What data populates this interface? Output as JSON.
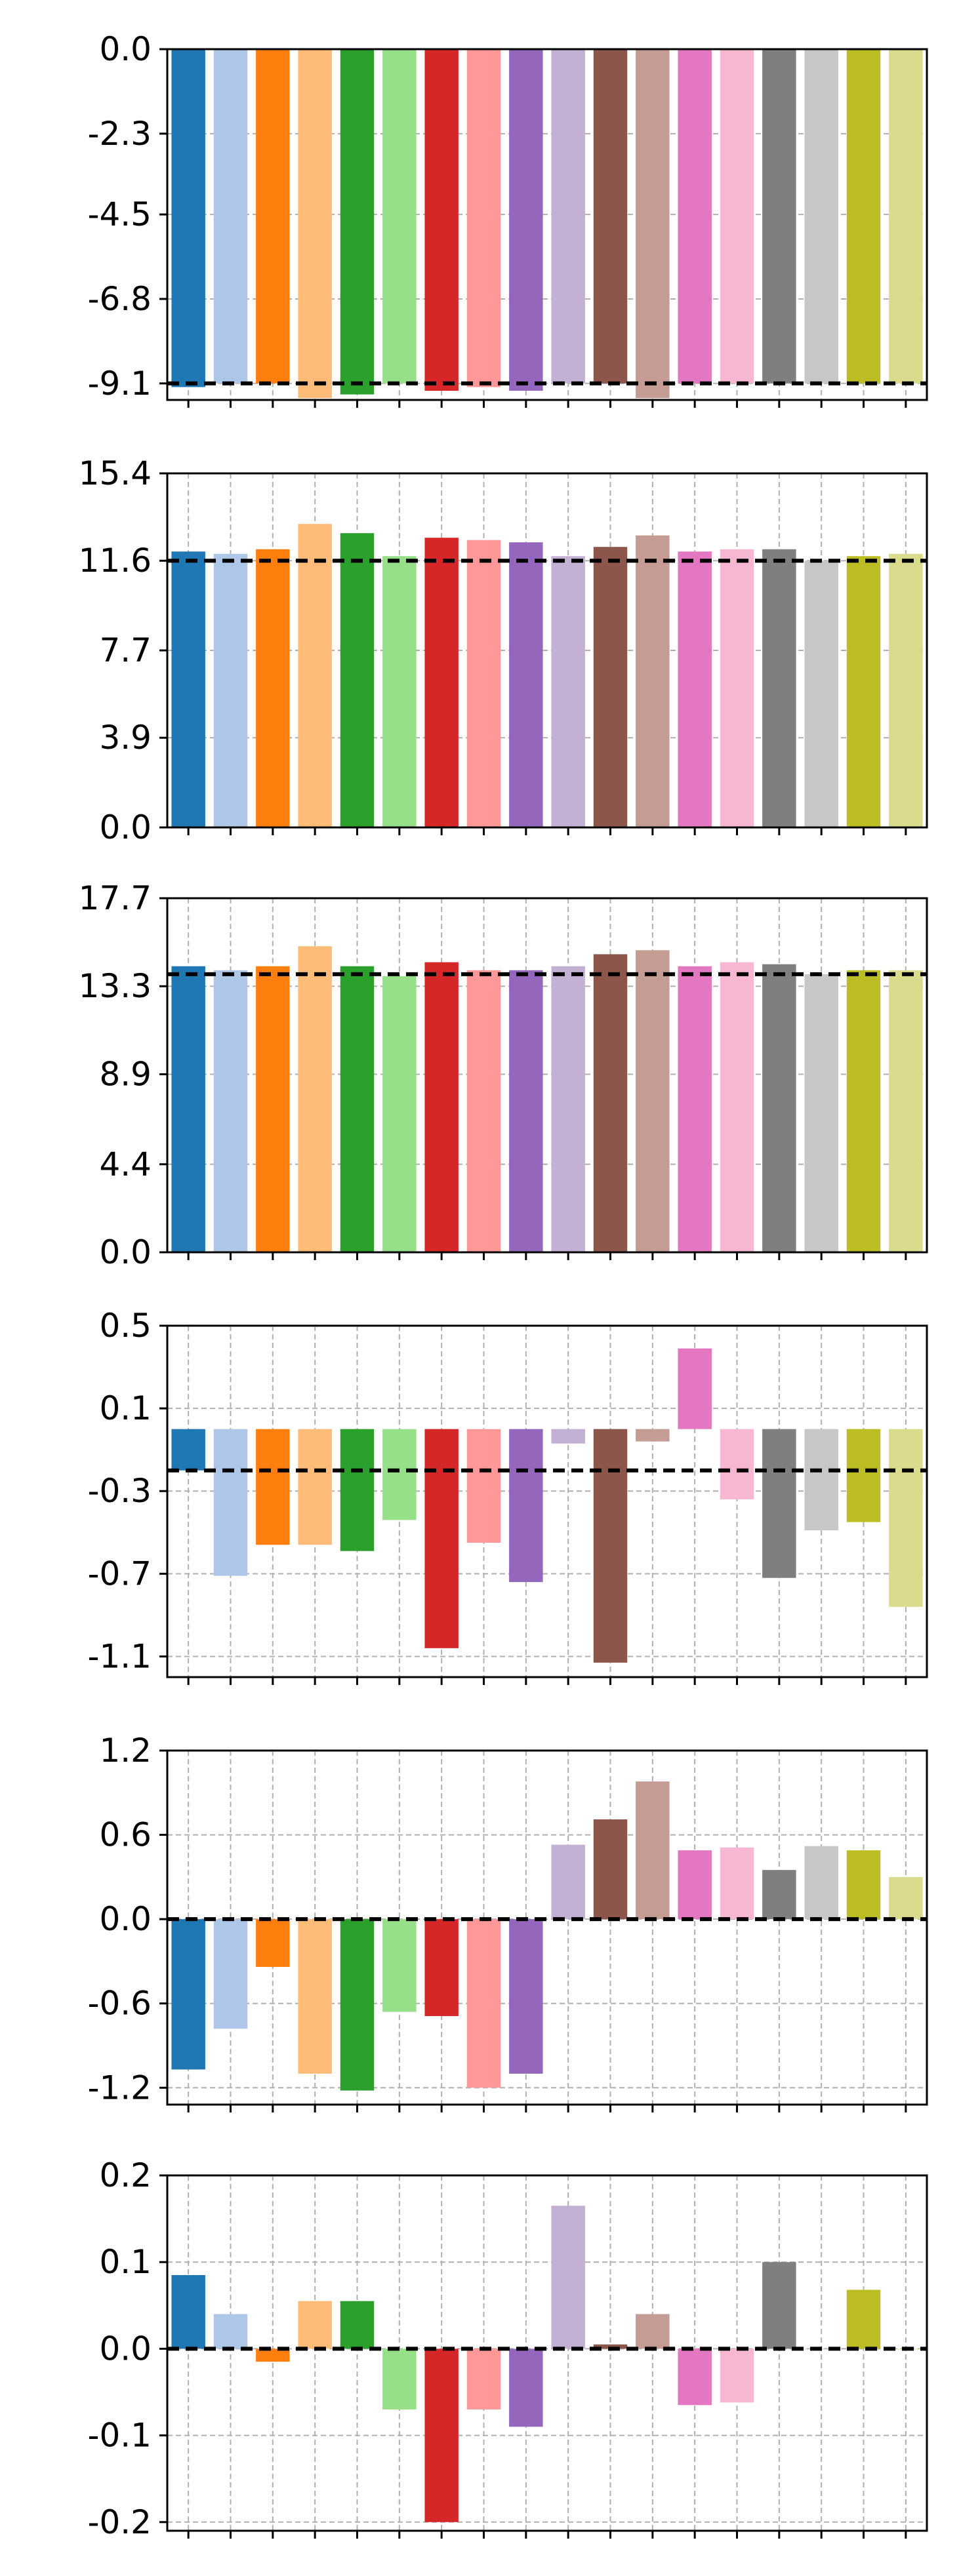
{
  "colors": [
    "#1f77b4",
    "#aec7e8",
    "#ff7f0e",
    "#ffbb78",
    "#2ca02c",
    "#98df8a",
    "#d62728",
    "#ff9896",
    "#9467bd",
    "#c5b0d5",
    "#8c564b",
    "#c49c94",
    "#e377c2",
    "#f7b6d2",
    "#7f7f7f",
    "#c7c7c7",
    "#bcbd22",
    "#dbdb8d"
  ],
  "chart_data": [
    {
      "type": "bar",
      "ylim": [
        -9.55,
        0.0
      ],
      "yticks": [
        0.0,
        -2.3,
        -4.5,
        -6.8,
        -9.1
      ],
      "ytick_labels": [
        "0.0",
        "-2.3",
        "-4.5",
        "-6.8",
        "-9.1"
      ],
      "values": [
        -9.2,
        -9.1,
        -9.1,
        -9.5,
        -9.4,
        -9.1,
        -9.3,
        -9.2,
        -9.3,
        -9.1,
        -9.1,
        -9.5,
        -9.1,
        -9.1,
        -9.1,
        -9.1,
        -9.1,
        -9.1
      ],
      "reference_line": -9.1,
      "grid": true
    },
    {
      "type": "bar",
      "ylim": [
        0.0,
        15.4
      ],
      "yticks": [
        0.0,
        3.9,
        7.7,
        11.6,
        15.4
      ],
      "ytick_labels": [
        "0.0",
        "3.9",
        "7.7",
        "11.6",
        "15.4"
      ],
      "values": [
        12.0,
        11.9,
        12.1,
        13.2,
        12.8,
        11.8,
        12.6,
        12.5,
        12.4,
        11.8,
        12.2,
        12.7,
        12.0,
        12.1,
        12.1,
        11.6,
        11.8,
        11.9
      ],
      "reference_line": 11.6,
      "grid": true
    },
    {
      "type": "bar",
      "ylim": [
        0.0,
        17.7
      ],
      "yticks": [
        0.0,
        4.4,
        8.9,
        13.3,
        17.7
      ],
      "ytick_labels": [
        "0.0",
        "4.4",
        "8.9",
        "13.3",
        "17.7"
      ],
      "values": [
        14.3,
        14.1,
        14.3,
        15.3,
        14.3,
        13.8,
        14.5,
        14.1,
        14.1,
        14.3,
        14.9,
        15.1,
        14.3,
        14.5,
        14.4,
        13.9,
        14.1,
        14.1
      ],
      "reference_line": 13.9,
      "grid": true
    },
    {
      "type": "bar",
      "ylim": [
        -1.2,
        0.5
      ],
      "yticks": [
        0.5,
        0.1,
        -0.3,
        -0.7,
        -1.1
      ],
      "ytick_labels": [
        "0.5",
        "0.1",
        "-0.3",
        "-0.7",
        "-1.1"
      ],
      "values": [
        -0.2,
        -0.71,
        -0.56,
        -0.56,
        -0.59,
        -0.44,
        -1.06,
        -0.55,
        -0.74,
        -0.07,
        -1.13,
        -0.06,
        0.39,
        -0.34,
        -0.72,
        -0.49,
        -0.45,
        -0.86
      ],
      "reference_line": -0.2,
      "grid": true
    },
    {
      "type": "bar",
      "ylim": [
        -1.32,
        1.2
      ],
      "yticks": [
        1.2,
        0.6,
        0.0,
        -0.6,
        -1.2
      ],
      "ytick_labels": [
        "1.2",
        "0.6",
        "0.0",
        "-0.6",
        "-1.2"
      ],
      "values": [
        -1.07,
        -0.78,
        -0.34,
        -1.1,
        -1.22,
        -0.66,
        -0.69,
        -1.2,
        -1.1,
        0.53,
        0.71,
        0.98,
        0.49,
        0.51,
        0.35,
        0.52,
        0.49,
        0.3
      ],
      "reference_line": 0.0,
      "grid": true
    },
    {
      "type": "bar",
      "ylim": [
        -0.21,
        0.2
      ],
      "yticks": [
        0.2,
        0.1,
        0.0,
        -0.1,
        -0.2
      ],
      "ytick_labels": [
        "0.2",
        "0.1",
        "0.0",
        "-0.1",
        "-0.2"
      ],
      "values": [
        0.085,
        0.04,
        -0.015,
        0.055,
        0.055,
        -0.07,
        -0.2,
        -0.07,
        -0.09,
        0.165,
        0.005,
        0.04,
        -0.065,
        -0.062,
        0.1,
        0.0,
        0.068,
        0.0
      ],
      "reference_line": 0.0,
      "grid": true
    }
  ]
}
